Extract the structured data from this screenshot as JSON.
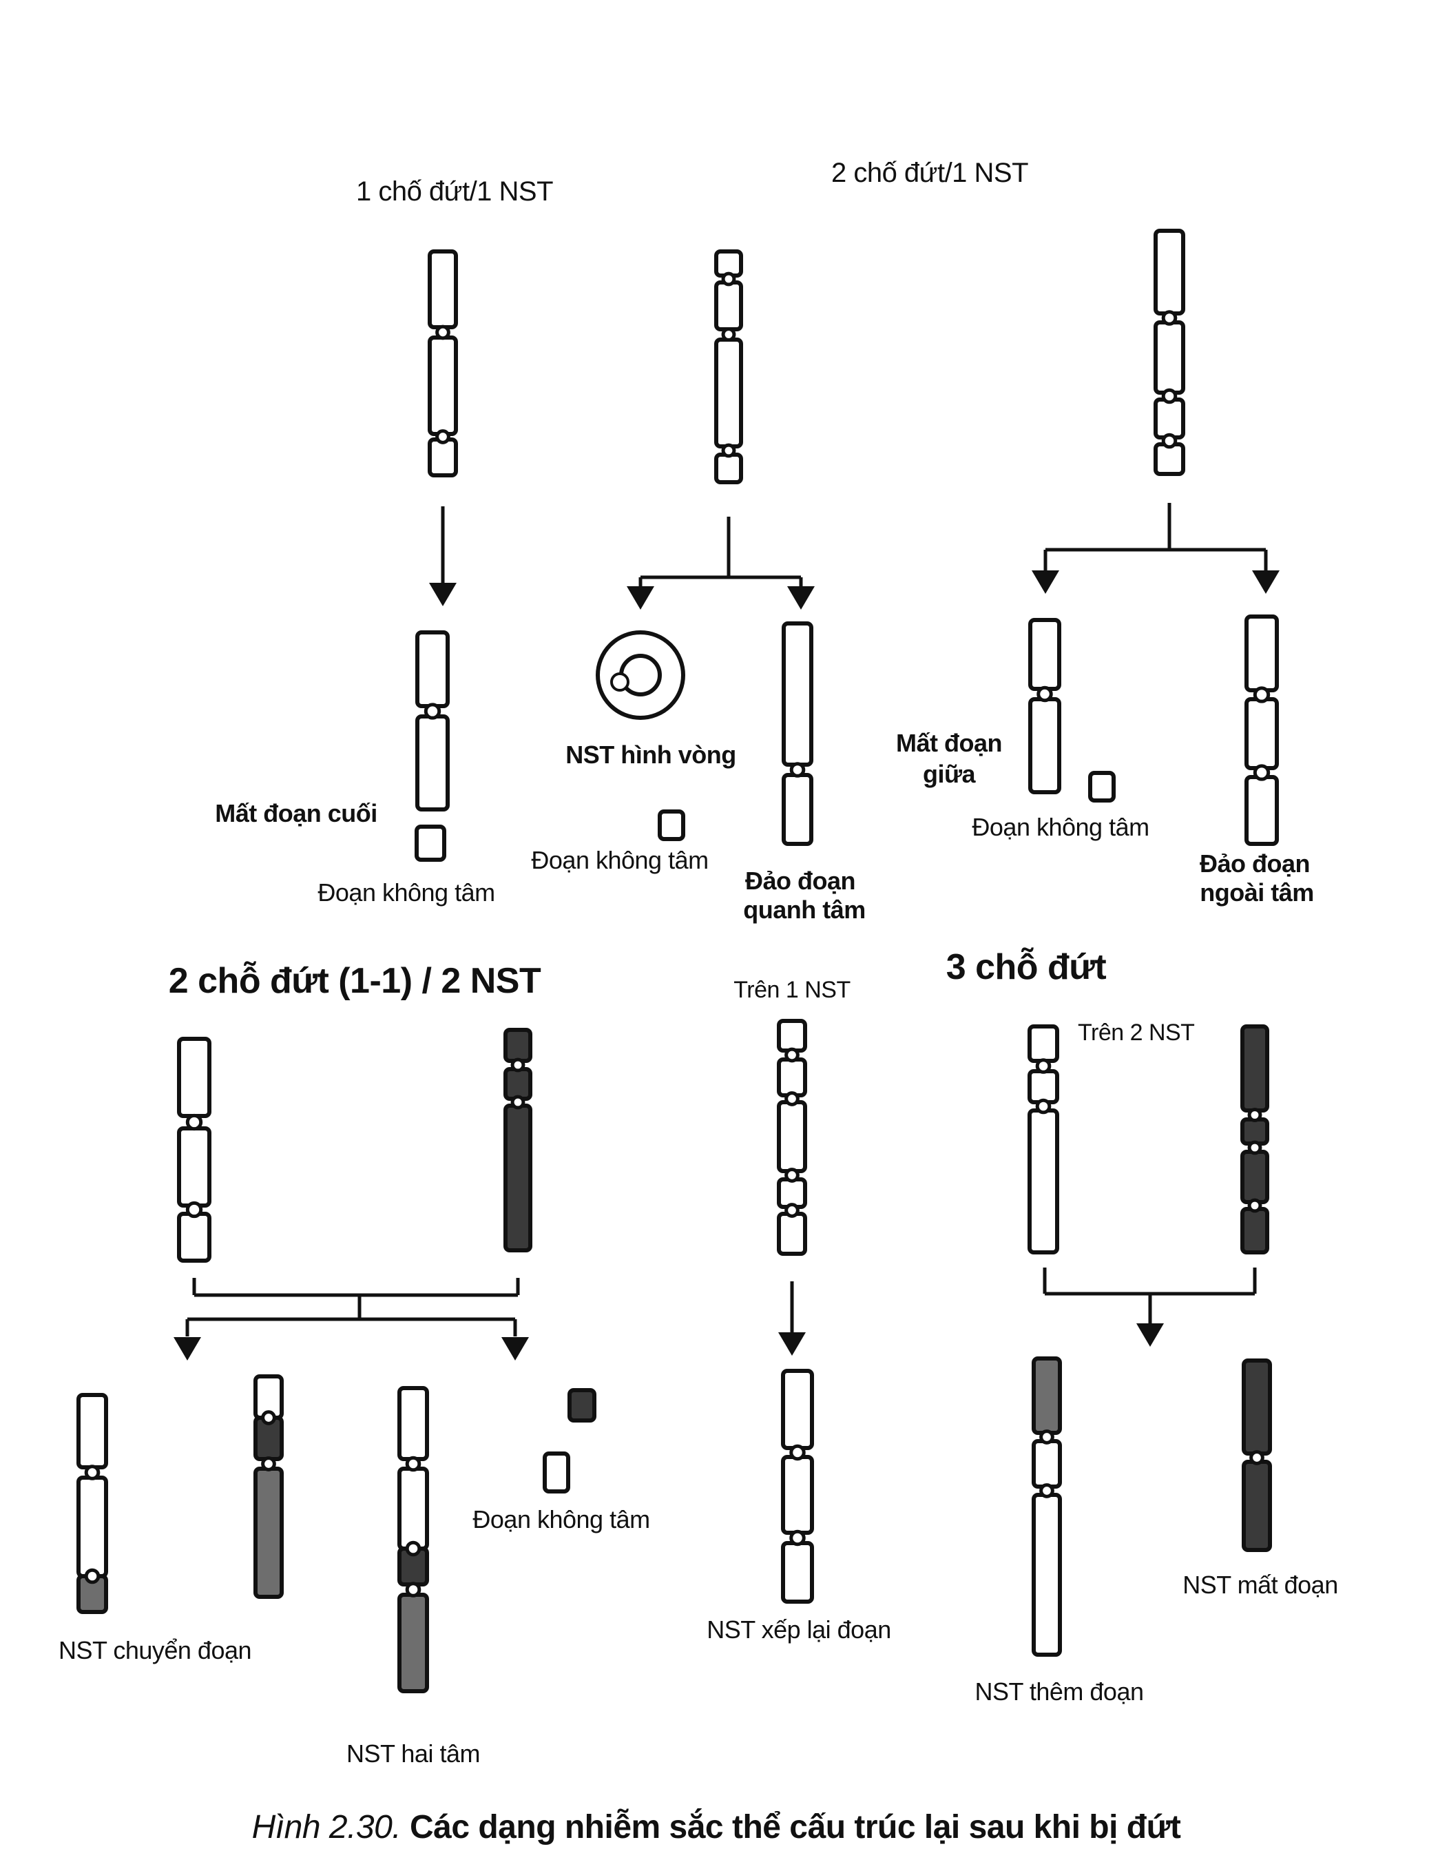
{
  "headers": {
    "one_break": "1 chố đứt/1 NST",
    "two_breaks_one": "2 chố đứt/1 NST",
    "two_breaks_two": "2 chỗ đứt (1-1) / 2 NST",
    "three_breaks": "3 chỗ đứt",
    "on_one": "Trên 1 NST",
    "on_two": "Trên 2 NST"
  },
  "labels": {
    "terminal_deletion": "Mất đoạn cuối",
    "acentric_1": "Đoạn không tâm",
    "ring": "NST hình vòng",
    "acentric_2": "Đoạn không tâm",
    "pericentric_1": "Đảo đoạn",
    "pericentric_2": "quanh tâm",
    "interstitial_1": "Mất đoạn",
    "interstitial_2": "giữa",
    "acentric_3": "Đoạn không tâm",
    "paracentric_1": "Đảo đoạn",
    "paracentric_2": "ngoài tâm",
    "translocation": "NST chuyển đoạn",
    "dicentric": "NST hai tâm",
    "acentric_4": "Đoạn không tâm",
    "rearranged": "NST xếp lại đoạn",
    "duplication": "NST thêm đoạn",
    "deletion": "NST mất đoạn"
  },
  "caption": {
    "figure_no": "Hình 2.30.",
    "text": "Các dạng nhiễm sắc thể cấu trúc lại sau khi bị đứt"
  },
  "colors": {
    "ink": "#111111",
    "dark_chromatin": "#3a3a3a",
    "mid_chromatin": "#6e6e6e",
    "paper": "#ffffff"
  }
}
